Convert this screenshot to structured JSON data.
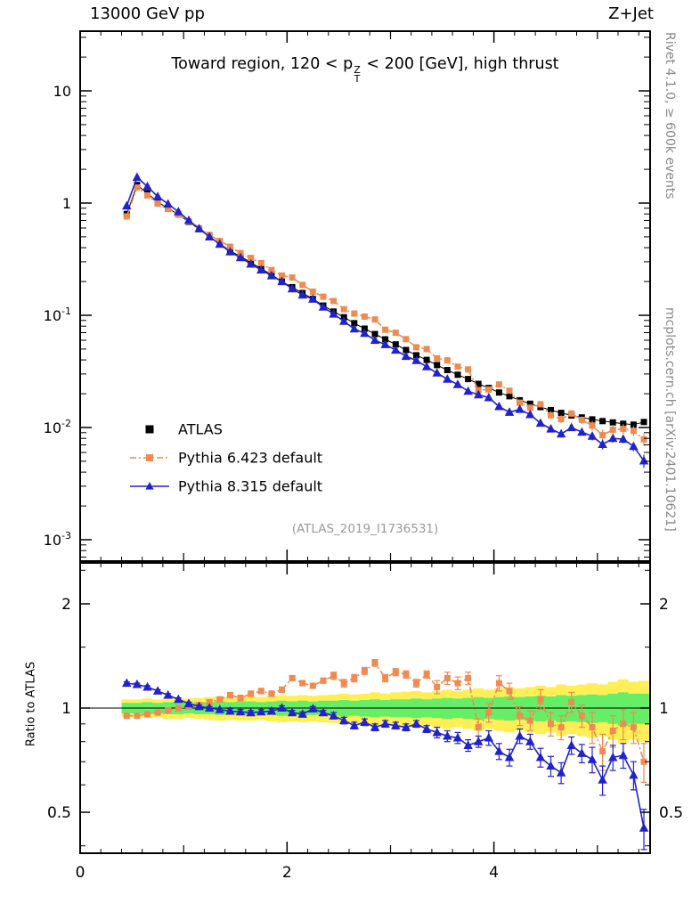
{
  "header": {
    "left": "13000 GeV pp",
    "right": "Z+Jet"
  },
  "title": {
    "pre": "Toward region, 120 < p",
    "sup": "Z",
    "sub": "T",
    "post": " < 200 [GeV], high thrust"
  },
  "watermark": "(ATLAS_2019_I1736531)",
  "side_notes": {
    "top_right": "Rivet 4.1.0, ≥ 600k events",
    "bottom_right": "mcplots.cern.ch [arXiv:2401.10621]"
  },
  "ratio_axis_label": "Ratio to ATLAS",
  "colors": {
    "atlas": "#000000",
    "pythia6": "#ef8a50",
    "pythia8": "#2222cc",
    "band_green": "#66ee66",
    "band_yellow": "#ffee55"
  },
  "chart_data": {
    "type": "line",
    "title": "Toward region, 120 < pT(Z) < 200 [GeV], high thrust",
    "xlabel": "",
    "ylabel": "",
    "ylabel_ratio": "Ratio to ATLAS",
    "x": [
      0.45,
      0.55,
      0.65,
      0.75,
      0.85,
      0.95,
      1.05,
      1.15,
      1.25,
      1.35,
      1.45,
      1.55,
      1.65,
      1.75,
      1.85,
      1.95,
      2.05,
      2.15,
      2.25,
      2.35,
      2.45,
      2.55,
      2.65,
      2.75,
      2.85,
      2.95,
      3.05,
      3.15,
      3.25,
      3.35,
      3.45,
      3.55,
      3.65,
      3.75,
      3.85,
      3.95,
      4.05,
      4.15,
      4.25,
      4.35,
      4.45,
      4.55,
      4.65,
      4.75,
      4.85,
      4.95,
      5.05,
      5.15,
      5.25,
      5.35,
      5.45
    ],
    "series": [
      {
        "name": "ATLAS",
        "marker": "square",
        "color": "#000000",
        "line": "solid",
        "values": [
          0.8,
          1.45,
          1.22,
          1.02,
          0.9,
          0.79,
          0.68,
          0.585,
          0.5,
          0.435,
          0.375,
          0.335,
          0.295,
          0.26,
          0.23,
          0.2,
          0.178,
          0.158,
          0.14,
          0.122,
          0.108,
          0.096,
          0.085,
          0.076,
          0.068,
          0.061,
          0.055,
          0.049,
          0.044,
          0.04,
          0.036,
          0.0325,
          0.0295,
          0.027,
          0.0245,
          0.0225,
          0.0205,
          0.019,
          0.0175,
          0.0163,
          0.0152,
          0.0143,
          0.0135,
          0.0128,
          0.0123,
          0.0118,
          0.0114,
          0.0111,
          0.0108,
          0.0106,
          0.0112
        ],
        "rel_err": [
          0.02,
          0.02,
          0.02,
          0.02,
          0.02,
          0.02,
          0.02,
          0.02,
          0.02,
          0.02,
          0.02,
          0.02,
          0.02,
          0.02,
          0.02,
          0.02,
          0.02,
          0.02,
          0.02,
          0.02,
          0.02,
          0.02,
          0.02,
          0.02,
          0.02,
          0.03,
          0.03,
          0.03,
          0.03,
          0.03,
          0.03,
          0.03,
          0.03,
          0.03,
          0.03,
          0.03,
          0.03,
          0.03,
          0.03,
          0.03,
          0.05,
          0.05,
          0.05,
          0.05,
          0.05,
          0.05,
          0.05,
          0.05,
          0.05,
          0.05,
          0.05
        ]
      },
      {
        "name": "Pythia 6.423 default",
        "marker": "square",
        "color": "#ef8a50",
        "line": "dashdot",
        "ratio": [
          0.95,
          0.95,
          0.96,
          0.97,
          0.985,
          1.0,
          1.01,
          1.02,
          1.04,
          1.06,
          1.09,
          1.07,
          1.1,
          1.12,
          1.1,
          1.13,
          1.22,
          1.18,
          1.16,
          1.2,
          1.24,
          1.18,
          1.22,
          1.28,
          1.35,
          1.22,
          1.27,
          1.25,
          1.18,
          1.25,
          1.15,
          1.22,
          1.18,
          1.22,
          0.88,
          0.97,
          1.18,
          1.12,
          0.95,
          0.92,
          1.06,
          0.9,
          0.88,
          1.04,
          0.95,
          0.88,
          0.75,
          0.86,
          0.9,
          0.88,
          0.7
        ],
        "ratio_err": [
          0.015,
          0.015,
          0.015,
          0.015,
          0.015,
          0.015,
          0.015,
          0.015,
          0.015,
          0.015,
          0.02,
          0.02,
          0.02,
          0.02,
          0.02,
          0.02,
          0.02,
          0.02,
          0.02,
          0.02,
          0.03,
          0.03,
          0.03,
          0.03,
          0.03,
          0.03,
          0.03,
          0.03,
          0.03,
          0.03,
          0.05,
          0.05,
          0.05,
          0.05,
          0.05,
          0.06,
          0.06,
          0.06,
          0.06,
          0.06,
          0.07,
          0.07,
          0.07,
          0.07,
          0.07,
          0.09,
          0.09,
          0.09,
          0.09,
          0.09,
          0.09
        ]
      },
      {
        "name": "Pythia 8.315 default",
        "marker": "triangle",
        "color": "#2222cc",
        "line": "solid",
        "ratio": [
          1.18,
          1.17,
          1.15,
          1.12,
          1.09,
          1.06,
          1.03,
          1.01,
          1.0,
          0.99,
          0.98,
          0.975,
          0.97,
          0.975,
          0.98,
          1.0,
          0.97,
          0.96,
          0.995,
          0.97,
          0.95,
          0.92,
          0.89,
          0.91,
          0.88,
          0.9,
          0.89,
          0.88,
          0.9,
          0.87,
          0.85,
          0.83,
          0.82,
          0.78,
          0.8,
          0.82,
          0.75,
          0.72,
          0.83,
          0.8,
          0.72,
          0.68,
          0.65,
          0.78,
          0.74,
          0.71,
          0.62,
          0.72,
          0.73,
          0.64,
          0.45
        ],
        "ratio_err": [
          0.01,
          0.01,
          0.01,
          0.01,
          0.01,
          0.01,
          0.01,
          0.01,
          0.01,
          0.01,
          0.015,
          0.015,
          0.015,
          0.015,
          0.015,
          0.015,
          0.015,
          0.015,
          0.015,
          0.015,
          0.02,
          0.02,
          0.02,
          0.02,
          0.02,
          0.02,
          0.02,
          0.02,
          0.02,
          0.02,
          0.03,
          0.03,
          0.03,
          0.03,
          0.03,
          0.04,
          0.04,
          0.04,
          0.04,
          0.04,
          0.045,
          0.045,
          0.045,
          0.045,
          0.045,
          0.06,
          0.06,
          0.06,
          0.06,
          0.06,
          0.06
        ]
      }
    ],
    "bands": {
      "green_color": "#66ee66",
      "yellow_color": "#ffee55",
      "green_halfwidth": [
        0.035,
        0.035,
        0.04,
        0.035,
        0.04,
        0.04,
        0.035,
        0.04,
        0.04,
        0.045,
        0.04,
        0.045,
        0.045,
        0.04,
        0.045,
        0.05,
        0.045,
        0.05,
        0.045,
        0.05,
        0.05,
        0.055,
        0.05,
        0.055,
        0.06,
        0.055,
        0.06,
        0.06,
        0.065,
        0.06,
        0.065,
        0.07,
        0.065,
        0.07,
        0.075,
        0.07,
        0.075,
        0.08,
        0.075,
        0.08,
        0.085,
        0.08,
        0.09,
        0.085,
        0.09,
        0.095,
        0.09,
        0.1,
        0.11,
        0.1,
        0.1
      ],
      "yellow_halfwidth": [
        0.06,
        0.06,
        0.065,
        0.06,
        0.07,
        0.07,
        0.065,
        0.07,
        0.075,
        0.08,
        0.075,
        0.08,
        0.08,
        0.075,
        0.085,
        0.09,
        0.085,
        0.09,
        0.085,
        0.09,
        0.095,
        0.1,
        0.095,
        0.1,
        0.11,
        0.1,
        0.11,
        0.115,
        0.12,
        0.11,
        0.12,
        0.13,
        0.12,
        0.13,
        0.14,
        0.13,
        0.14,
        0.15,
        0.14,
        0.15,
        0.16,
        0.15,
        0.17,
        0.16,
        0.17,
        0.18,
        0.17,
        0.19,
        0.21,
        0.19,
        0.2
      ]
    },
    "axes": {
      "x": {
        "min": 0,
        "max": 5.51,
        "major_ticks": [
          0,
          2,
          4
        ],
        "major_labels": [
          "0",
          "2",
          "4"
        ],
        "medium_ticks": [
          1,
          3,
          5
        ],
        "minor_step": 0.2
      },
      "y_main": {
        "scale": "log",
        "range_hint": [
          0.001,
          10
        ],
        "ticks": [
          {
            "v": 10,
            "base": "10",
            "sup": ""
          },
          {
            "v": 1,
            "base": "1",
            "sup": ""
          },
          {
            "v": 0.1,
            "base": "10",
            "sup": "-1"
          },
          {
            "v": 0.01,
            "base": "10",
            "sup": "-2"
          },
          {
            "v": 0.001,
            "base": "10",
            "sup": "-3"
          }
        ]
      },
      "y_ratio": {
        "scale": "log",
        "range_hint": [
          0.4,
          2.6
        ],
        "ticks": [
          {
            "v": 2,
            "label": "2"
          },
          {
            "v": 1,
            "label": "1"
          },
          {
            "v": 0.5,
            "label": "0.5"
          }
        ],
        "minor": [
          0.4,
          0.6,
          0.7,
          0.8,
          0.9,
          1.5,
          2.5
        ]
      },
      "legend_position": "left-middle",
      "grid": false
    }
  }
}
